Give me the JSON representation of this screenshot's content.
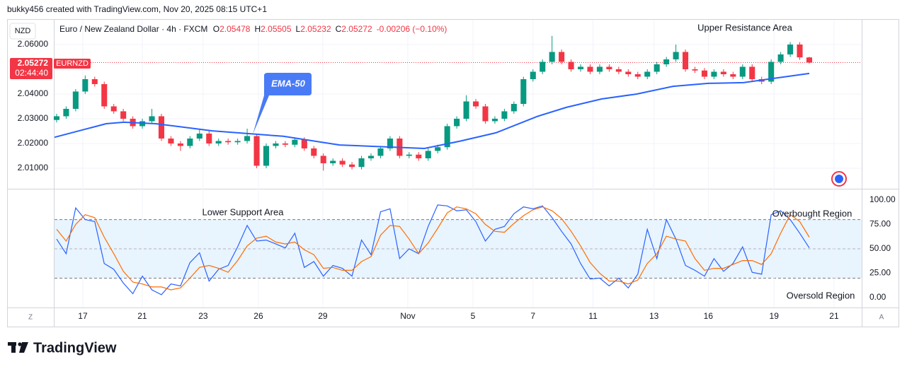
{
  "header": "bukky456 created with TradingView.com, Nov 20, 2025 08:15 UTC+1",
  "footer": "TradingView",
  "axis_buttons": [
    "Z",
    "A"
  ],
  "chart_data": [
    {
      "type": "candlestick",
      "title": "Euro / New Zealand Dollar · 4h · FXCM",
      "currency": "NZD",
      "symbol": "EURNZD",
      "countdown": "02:44:40",
      "ohlc_keys": [
        "O",
        "H",
        "L",
        "C"
      ],
      "change": "-0.00206 (−0.10%)",
      "up_color": "#089981",
      "down_color": "#f23645",
      "open": [
        2.0295,
        2.031,
        2.034,
        2.041,
        2.046,
        2.044,
        2.035,
        2.033,
        2.03,
        2.027,
        2.029,
        2.031,
        2.022,
        2.02,
        2.019,
        2.022,
        2.024,
        2.02,
        2.021,
        2.0205,
        2.021,
        2.023,
        2.011,
        2.019,
        2.02,
        2.0195,
        2.0215,
        2.018,
        2.015,
        2.012,
        2.013,
        2.0115,
        2.0105,
        2.014,
        2.015,
        2.018,
        2.022,
        2.015,
        2.0155,
        2.014,
        2.017,
        2.0185,
        2.027,
        2.03,
        2.037,
        2.035,
        2.029,
        2.03,
        2.033,
        2.036,
        2.046,
        2.049,
        2.053,
        2.057,
        2.053,
        2.05,
        2.051,
        2.049,
        2.051,
        2.05,
        2.049,
        2.048,
        2.047,
        2.049,
        2.052,
        2.054,
        2.057,
        2.05,
        2.0495,
        2.047,
        2.049,
        2.048,
        2.047,
        2.051,
        2.046,
        2.045,
        2.053,
        2.056,
        2.06,
        2.05478
      ],
      "high": [
        2.032,
        2.035,
        2.042,
        2.0475,
        2.047,
        2.045,
        2.036,
        2.034,
        2.031,
        2.03,
        2.034,
        2.032,
        2.023,
        2.021,
        2.023,
        2.0255,
        2.025,
        2.022,
        2.022,
        2.022,
        2.026,
        2.024,
        2.02,
        2.021,
        2.021,
        2.0225,
        2.0225,
        2.019,
        2.016,
        2.014,
        2.014,
        2.0125,
        2.015,
        2.016,
        2.019,
        2.023,
        2.023,
        2.0165,
        2.0165,
        2.018,
        2.0195,
        2.028,
        2.031,
        2.0395,
        2.038,
        2.036,
        2.031,
        2.034,
        2.037,
        2.047,
        2.05,
        2.054,
        2.0635,
        2.058,
        2.054,
        2.052,
        2.052,
        2.052,
        2.052,
        2.051,
        2.05,
        2.049,
        2.05,
        2.053,
        2.055,
        2.06,
        2.058,
        2.051,
        2.0505,
        2.05,
        2.05,
        2.049,
        2.052,
        2.052,
        2.047,
        2.054,
        2.057,
        2.061,
        2.061,
        2.05505
      ],
      "low": [
        2.0285,
        2.03,
        2.033,
        2.04,
        2.043,
        2.034,
        2.032,
        2.029,
        2.026,
        2.026,
        2.028,
        2.021,
        2.019,
        2.017,
        2.018,
        2.021,
        2.019,
        2.019,
        2.0195,
        2.0195,
        2.02,
        2.01,
        2.01,
        2.018,
        2.0185,
        2.0185,
        2.017,
        2.014,
        2.009,
        2.011,
        2.0105,
        2.0095,
        2.0095,
        2.013,
        2.014,
        2.017,
        2.014,
        2.014,
        2.013,
        2.013,
        2.016,
        2.0175,
        2.026,
        2.029,
        2.034,
        2.028,
        2.028,
        2.029,
        2.032,
        2.035,
        2.045,
        2.048,
        2.052,
        2.052,
        2.049,
        2.049,
        2.048,
        2.048,
        2.049,
        2.048,
        2.047,
        2.046,
        2.046,
        2.048,
        2.051,
        2.053,
        2.049,
        2.0485,
        2.046,
        2.046,
        2.047,
        2.046,
        2.046,
        2.045,
        2.044,
        2.044,
        2.052,
        2.055,
        2.0538,
        2.05232
      ],
      "close": [
        2.031,
        2.034,
        2.041,
        2.046,
        2.044,
        2.035,
        2.033,
        2.03,
        2.027,
        2.029,
        2.031,
        2.022,
        2.02,
        2.019,
        2.022,
        2.024,
        2.02,
        2.021,
        2.0205,
        2.021,
        2.023,
        2.011,
        2.019,
        2.02,
        2.0195,
        2.0215,
        2.018,
        2.015,
        2.012,
        2.013,
        2.0115,
        2.0105,
        2.014,
        2.015,
        2.018,
        2.022,
        2.015,
        2.0155,
        2.014,
        2.017,
        2.0185,
        2.027,
        2.03,
        2.037,
        2.035,
        2.029,
        2.03,
        2.033,
        2.036,
        2.046,
        2.049,
        2.053,
        2.057,
        2.053,
        2.05,
        2.051,
        2.049,
        2.051,
        2.05,
        2.049,
        2.048,
        2.047,
        2.049,
        2.052,
        2.054,
        2.057,
        2.05,
        2.0495,
        2.047,
        2.049,
        2.048,
        2.047,
        2.051,
        2.046,
        2.045,
        2.053,
        2.056,
        2.06,
        2.0548,
        2.05272
      ],
      "ema": {
        "name": "EMA-50",
        "color": "#2962ff",
        "x": [
          -0.22,
          5.2,
          7.06,
          10.4,
          16.35,
          23.8,
          29.7,
          38.6,
          42.4,
          46.1,
          50.5,
          53.5,
          57.2,
          60.9,
          64.7,
          68.4,
          72.1,
          75.8,
          79
        ],
        "values": [
          2.0225,
          2.028,
          2.0286,
          2.028,
          2.0251,
          2.0229,
          2.0194,
          2.018,
          2.021,
          2.0243,
          2.031,
          2.0346,
          2.038,
          2.04,
          2.0431,
          2.0443,
          2.0446,
          2.0466,
          2.0483
        ]
      },
      "xlim": [
        -0.22,
        84.5
      ],
      "ylim": [
        2.0017,
        2.07
      ],
      "yticks": [
        {
          "value": 2.01,
          "label": "2.01000"
        },
        {
          "value": 2.02,
          "label": "2.02000"
        },
        {
          "value": 2.03,
          "label": "2.03000"
        },
        {
          "value": 2.04,
          "label": "2.04000"
        },
        {
          "value": 2.06,
          "label": "2.06000"
        }
      ],
      "grid": true,
      "annotations": [
        "Upper Resistance Area"
      ]
    },
    {
      "type": "line",
      "series": [
        {
          "color": "#2962ff",
          "values": [
            60,
            45,
            92,
            80,
            78,
            35,
            29,
            15,
            4,
            22,
            8,
            3,
            14,
            12,
            36,
            46,
            17,
            29,
            33,
            52,
            74,
            58,
            59,
            55,
            51,
            66,
            31,
            37,
            22,
            33,
            30,
            22,
            59,
            44,
            88,
            91,
            40,
            50,
            45,
            73,
            95,
            94,
            89,
            90,
            78,
            58,
            70,
            73,
            86,
            93,
            91,
            94,
            82,
            68,
            55,
            35,
            19,
            20,
            12,
            20,
            10,
            24,
            70,
            40,
            80,
            60,
            33,
            28,
            22,
            40,
            27,
            35,
            52,
            26,
            24,
            85,
            89,
            80,
            66,
            51
          ]
        },
        {
          "color": "#ff6d00",
          "values": [
            70,
            58,
            75,
            85,
            82,
            62,
            45,
            27,
            16,
            14,
            11,
            11,
            8,
            10,
            20,
            31,
            33,
            30,
            26,
            38,
            53,
            61,
            63,
            57,
            55,
            57,
            49,
            44,
            30,
            31,
            28,
            28,
            37,
            42,
            64,
            74,
            73,
            60,
            45,
            56,
            71,
            87,
            93,
            91,
            86,
            75,
            68,
            67,
            76,
            84,
            90,
            93,
            89,
            81,
            68,
            53,
            36,
            25,
            17,
            17,
            14,
            18,
            35,
            45,
            63,
            60,
            58,
            40,
            28,
            30,
            30,
            34,
            38,
            38,
            34,
            45,
            66,
            85,
            78,
            62
          ]
        }
      ],
      "band": [
        20,
        80
      ],
      "midline": 50,
      "xlim": [
        -0.22,
        84.5
      ],
      "ylim": [
        -10.1,
        111.6
      ],
      "yticks": [
        {
          "value": 0,
          "label": "0.00"
        },
        {
          "value": 25,
          "label": "25.00"
        },
        {
          "value": 50,
          "label": "50.00"
        },
        {
          "value": 75,
          "label": "75.00"
        },
        {
          "value": 100,
          "label": "100.00"
        }
      ],
      "xticks": [
        {
          "value": 2.75,
          "label": "17"
        },
        {
          "value": 8.99,
          "label": "21"
        },
        {
          "value": 15.38,
          "label": "23"
        },
        {
          "value": 21.18,
          "label": "26"
        },
        {
          "value": 27.94,
          "label": "29"
        },
        {
          "value": 36.86,
          "label": "Nov"
        },
        {
          "value": 43.7,
          "label": "5"
        },
        {
          "value": 50.0,
          "label": "7"
        },
        {
          "value": 56.3,
          "label": "11"
        },
        {
          "value": 62.7,
          "label": "13"
        },
        {
          "value": 68.4,
          "label": "16"
        },
        {
          "value": 75.3,
          "label": "19"
        },
        {
          "value": 81.6,
          "label": "21"
        }
      ],
      "annotations": [
        "Lower Support Area",
        "Overbought Region",
        "Oversold Region"
      ]
    }
  ]
}
